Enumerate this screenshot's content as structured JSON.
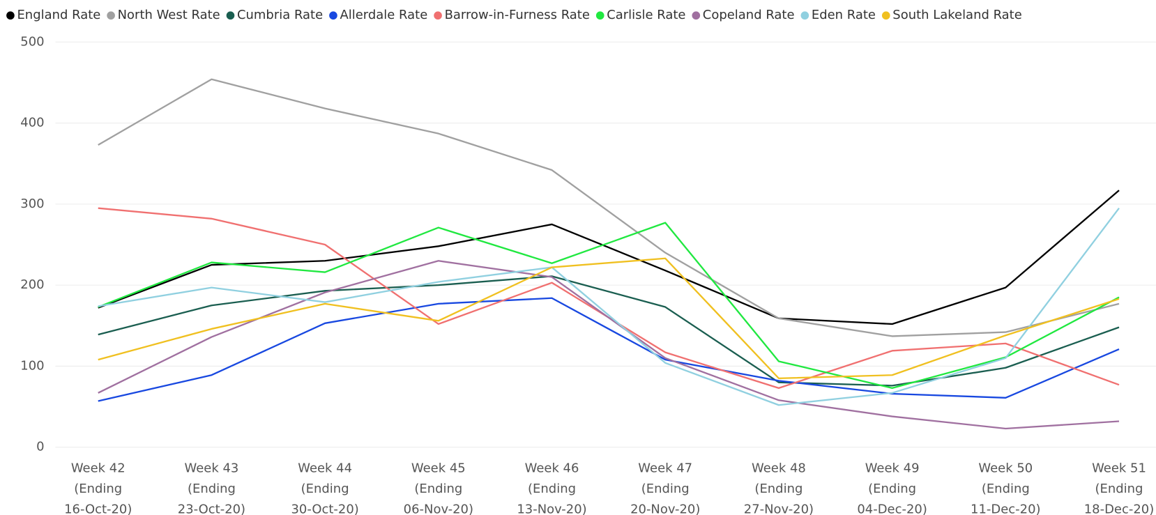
{
  "chart_data": {
    "type": "line",
    "categories": [
      [
        "Week 42",
        "(Ending",
        "16-Oct-20)"
      ],
      [
        "Week 43",
        "(Ending",
        "23-Oct-20)"
      ],
      [
        "Week 44",
        "(Ending",
        "30-Oct-20)"
      ],
      [
        "Week 45",
        "(Ending",
        "06-Nov-20)"
      ],
      [
        "Week 46",
        "(Ending",
        "13-Nov-20)"
      ],
      [
        "Week 47",
        "(Ending",
        "20-Nov-20)"
      ],
      [
        "Week 48",
        "(Ending",
        "27-Nov-20)"
      ],
      [
        "Week 49",
        "(Ending",
        "04-Dec-20)"
      ],
      [
        "Week 50",
        "(Ending",
        "11-Dec-20)"
      ],
      [
        "Week 51",
        "(Ending",
        "18-Dec-20)"
      ]
    ],
    "series": [
      {
        "name": "England Rate",
        "color": "#000000",
        "values": [
          172,
          225,
          230,
          248,
          275,
          218,
          159,
          152,
          197,
          317
        ]
      },
      {
        "name": "North West Rate",
        "color": "#a0a0a0",
        "values": [
          373,
          454,
          418,
          387,
          342,
          240,
          159,
          137,
          142,
          177
        ]
      },
      {
        "name": "Cumbria Rate",
        "color": "#1a5e50",
        "values": [
          139,
          175,
          193,
          200,
          211,
          173,
          80,
          76,
          98,
          148
        ]
      },
      {
        "name": "Allerdale Rate",
        "color": "#1848e0",
        "values": [
          57,
          89,
          153,
          177,
          184,
          108,
          82,
          66,
          61,
          121
        ]
      },
      {
        "name": "Barrow-in-Furness Rate",
        "color": "#f07070",
        "values": [
          295,
          282,
          250,
          152,
          203,
          117,
          73,
          119,
          128,
          77
        ]
      },
      {
        "name": "Carlisle Rate",
        "color": "#20e840",
        "values": [
          173,
          228,
          216,
          271,
          227,
          277,
          106,
          73,
          111,
          185
        ]
      },
      {
        "name": "Copeland Rate",
        "color": "#a070a0",
        "values": [
          67,
          136,
          191,
          230,
          210,
          110,
          58,
          38,
          23,
          32
        ]
      },
      {
        "name": "Eden Rate",
        "color": "#90d0e0",
        "values": [
          174,
          197,
          179,
          204,
          222,
          104,
          52,
          67,
          110,
          295
        ]
      },
      {
        "name": "South Lakeland Rate",
        "color": "#f0c020",
        "values": [
          108,
          146,
          177,
          156,
          222,
          233,
          85,
          89,
          138,
          183
        ]
      }
    ],
    "ylim": [
      0,
      500
    ],
    "yticks": [
      0,
      100,
      200,
      300,
      400,
      500
    ],
    "grid": true
  }
}
